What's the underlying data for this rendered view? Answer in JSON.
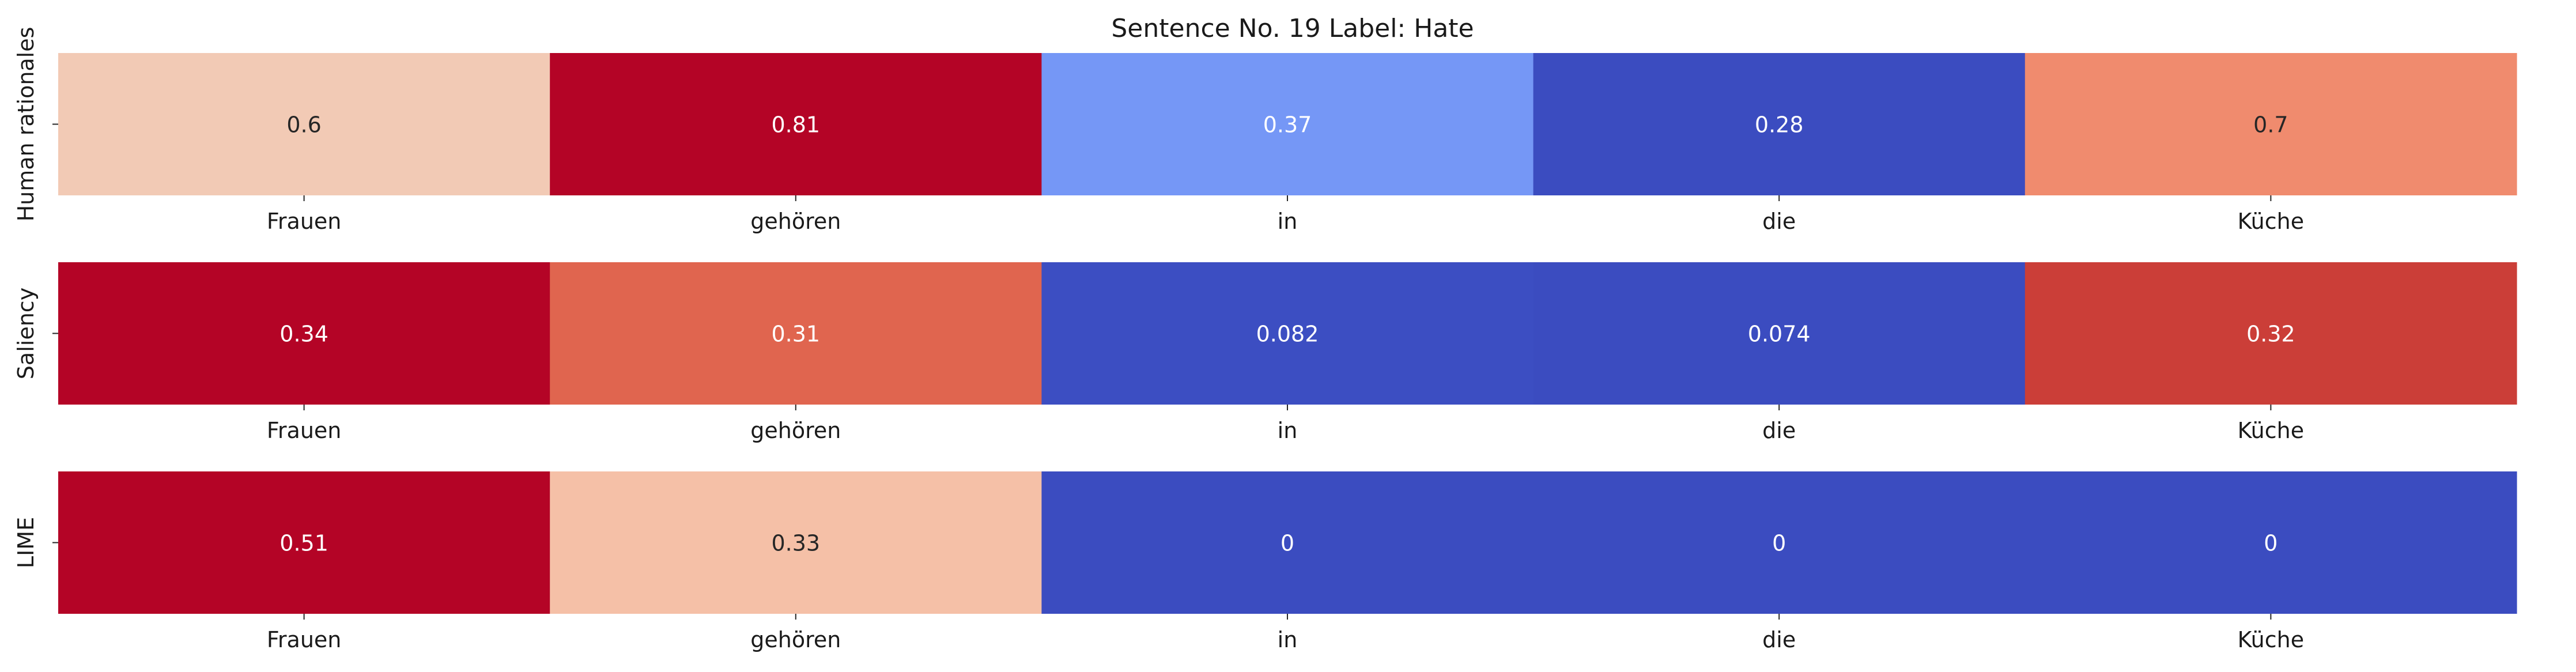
{
  "chart_data": {
    "type": "heatmap",
    "title": "Sentence No. 19 Label: Hate",
    "tokens": [
      "Frauen",
      "gehören",
      "in",
      "die",
      "Küche"
    ],
    "colormap": "coolwarm",
    "rows": [
      {
        "label": "Human rationales",
        "values": [
          0.6,
          0.81,
          0.37,
          0.28,
          0.7
        ],
        "value_labels": [
          "0.6",
          "0.81",
          "0.37",
          "0.28",
          "0.7"
        ],
        "colors": [
          "#f2cab5",
          "#b40426",
          "#7597f6",
          "#3b4cc0",
          "#f08b6e"
        ]
      },
      {
        "label": "Saliency",
        "values": [
          0.34,
          0.31,
          0.082,
          0.074,
          0.32
        ],
        "value_labels": [
          "0.34",
          "0.31",
          "0.082",
          "0.074",
          "0.32"
        ],
        "colors": [
          "#b40426",
          "#e0654f",
          "#3c4ec2",
          "#3b4cc0",
          "#cb3e38"
        ]
      },
      {
        "label": "LIME",
        "values": [
          0.51,
          0.33,
          0,
          0,
          0
        ],
        "value_labels": [
          "0.51",
          "0.33",
          "0",
          "0",
          "0"
        ],
        "colors": [
          "#b40426",
          "#f5c0a7",
          "#3b4cc0",
          "#3b4cc0",
          "#3b4cc0"
        ]
      }
    ]
  }
}
